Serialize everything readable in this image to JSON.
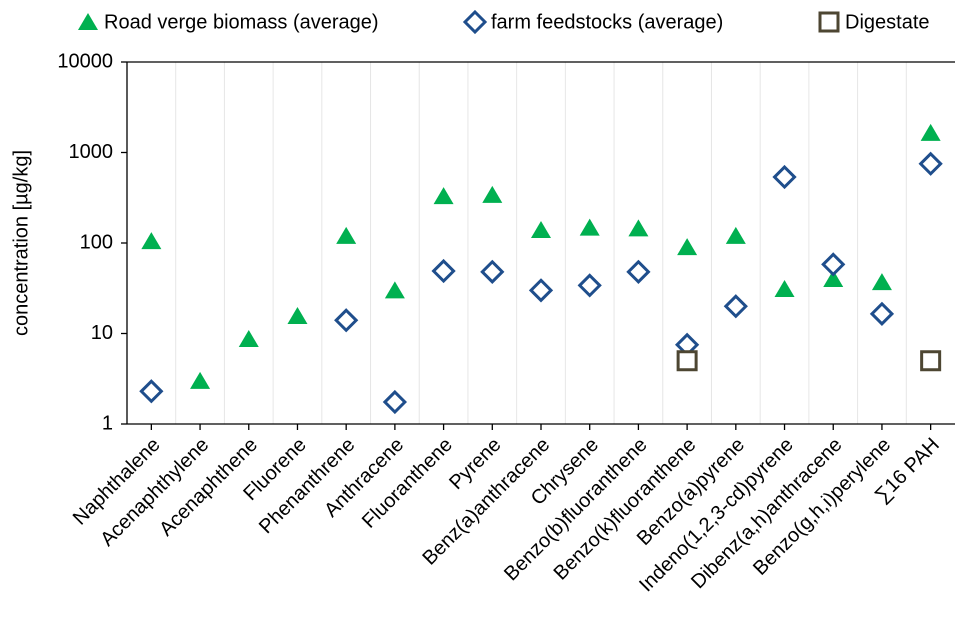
{
  "chart_data": {
    "type": "scatter",
    "y_label": "concentration [µg/kg]",
    "categories": [
      "Naphthalene",
      "Acenaphthylene",
      "Acenaphthene",
      "Fluorene",
      "Phenanthrene",
      "Anthracene",
      "Fluoranthene",
      "Pyrene",
      "Benz(a)anthracene",
      "Chrysene",
      "Benzo(b)fluoranthene",
      "Benzo(k)fluoranthene",
      "Benzo(a)pyrene",
      "Indeno(1,2,3-cd)pyrene",
      "Dibenz(a,h)anthracene",
      "Benzo(g,h,i)perylene",
      "∑16 PAH"
    ],
    "series": [
      {
        "name": "Road verge biomass (average)",
        "color": "#00b050",
        "marker": "triangle",
        "values": [
          105,
          3,
          8.7,
          15.6,
          120,
          30,
          330,
          340,
          139,
          148,
          145,
          90,
          120,
          31,
          40,
          37,
          1650
        ]
      },
      {
        "name": "farm feedstocks (average)",
        "color": "#1f4e8c",
        "marker": "diamond",
        "values": [
          2.3,
          null,
          null,
          null,
          14,
          1.75,
          49,
          48,
          30,
          34,
          48,
          7.5,
          20,
          536,
          58,
          16.5,
          750
        ]
      },
      {
        "name": "Digestate",
        "color": "#4d4632",
        "marker": "square",
        "values": [
          null,
          null,
          null,
          null,
          null,
          null,
          null,
          null,
          null,
          null,
          null,
          5,
          null,
          null,
          null,
          null,
          5
        ]
      }
    ],
    "log_y": true,
    "ylim": [
      1,
      10000
    ],
    "yticks": [
      1,
      10,
      100,
      1000,
      10000
    ],
    "grid": true
  }
}
